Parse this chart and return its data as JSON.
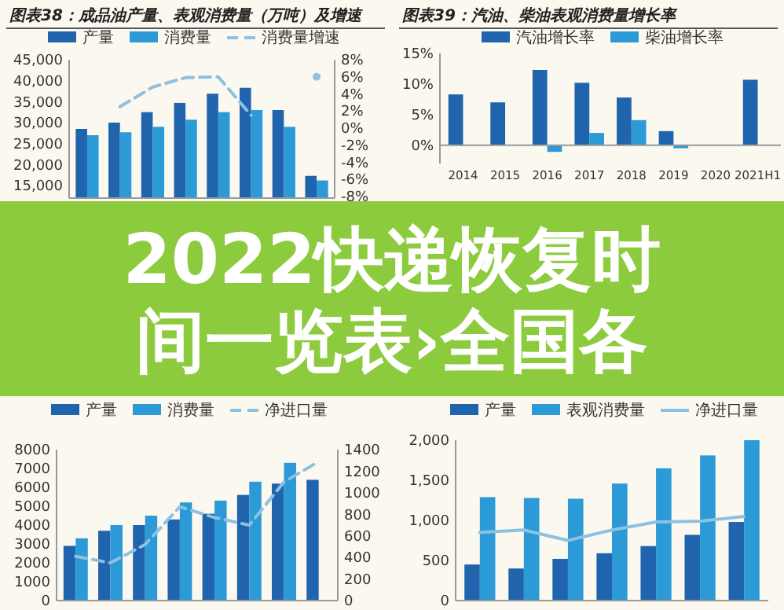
{
  "chart_data": [
    {
      "type": "bar",
      "title": "图表38：成品油产量、表观消费量（万吨）及增速",
      "categories": [
        null,
        null,
        null,
        null,
        null,
        null,
        null,
        null
      ],
      "legend": "top",
      "ylim": [
        12000,
        45000
      ],
      "yticks": [
        {
          "value": 15000,
          "label": "15,000"
        },
        {
          "value": 20000,
          "label": "20,000"
        },
        {
          "value": 25000,
          "label": "25,000"
        },
        {
          "value": 30000,
          "label": "30,000"
        },
        {
          "value": 35000,
          "label": "35,000"
        },
        {
          "value": 40000,
          "label": "40,000"
        },
        {
          "value": 45000,
          "label": "45,000"
        }
      ],
      "y2lim": [
        -8.2,
        8
      ],
      "y2ticks": [
        {
          "value": -8,
          "label": "-8%"
        },
        {
          "value": -6,
          "label": "-6%"
        },
        {
          "value": -4,
          "label": "-4%"
        },
        {
          "value": -2,
          "label": "-2%"
        },
        {
          "value": 0,
          "label": "0%"
        },
        {
          "value": 2,
          "label": "2%"
        },
        {
          "value": 4,
          "label": "4%"
        },
        {
          "value": 6,
          "label": "6%"
        },
        {
          "value": 8,
          "label": "8%"
        }
      ],
      "series": [
        {
          "name": "产量",
          "color": "#1f64ad",
          "values": [
            28500,
            30000,
            32500,
            34700,
            36900,
            38300,
            33000,
            17300
          ]
        },
        {
          "name": "消费量",
          "color": "#2b9ad6",
          "values": [
            27000,
            27700,
            29000,
            30700,
            32500,
            33000,
            29000,
            16200
          ]
        },
        {
          "name": "消费量增速",
          "type": "line",
          "axis": "y2",
          "line_style": "dashed",
          "color": "#8cc1e3",
          "values": [
            null,
            2.5,
            4.8,
            5.9,
            6.0,
            1.5,
            null,
            6.0
          ]
        }
      ]
    },
    {
      "type": "bar",
      "title": "图表39：汽油、柴油表观消费量增长率",
      "categories": [
        "2014",
        "2015",
        "2016",
        "2017",
        "2018",
        "2019",
        "2020",
        "2021H1"
      ],
      "legend": "top",
      "ylim": [
        -3,
        15
      ],
      "yticks": [
        {
          "value": 0,
          "label": "0%"
        },
        {
          "value": 5,
          "label": "5%"
        },
        {
          "value": 10,
          "label": "10%"
        },
        {
          "value": 15,
          "label": "15%"
        }
      ],
      "series": [
        {
          "name": "汽油增长率",
          "color": "#1f64ad",
          "values": [
            8.3,
            7.0,
            12.3,
            10.2,
            7.8,
            2.3,
            null,
            10.7
          ]
        },
        {
          "name": "柴油增长率",
          "color": "#2b9ad6",
          "values": [
            null,
            null,
            -1.1,
            2.0,
            4.1,
            -0.5,
            null,
            null
          ]
        }
      ]
    },
    {
      "type": "other",
      "title": "2022快递恢复时间一览表›全国各"
    },
    {
      "type": "bar",
      "categories": [
        null,
        null,
        null,
        null,
        null,
        null,
        null,
        null
      ],
      "legend": "top",
      "ylim": [
        0,
        8000
      ],
      "yticks": [
        0,
        1000,
        2000,
        3000,
        4000,
        5000,
        6000,
        7000,
        8000
      ],
      "y2lim": [
        0,
        1400
      ],
      "y2ticks": [
        0,
        200,
        400,
        600,
        800,
        1000,
        1200,
        1400
      ],
      "series": [
        {
          "name": "产量",
          "color": "#1f64ad",
          "values": [
            2900,
            3700,
            4000,
            4300,
            4600,
            5600,
            6200,
            6400
          ]
        },
        {
          "name": "消费量",
          "color": "#2b9ad6",
          "values": [
            3300,
            4000,
            4500,
            5200,
            5300,
            6300,
            7300,
            null
          ]
        },
        {
          "name": "净进口量",
          "type": "line",
          "axis": "y2",
          "line_style": "dashed",
          "color": "#8cc1e3",
          "values": [
            410,
            350,
            520,
            870,
            770,
            700,
            1100,
            1290
          ]
        }
      ]
    },
    {
      "type": "bar",
      "categories": [
        null,
        null,
        null,
        null,
        null,
        null,
        null
      ],
      "legend": "top",
      "ylim": [
        0,
        2000
      ],
      "yticks": [
        0,
        500,
        {
          "value": 1000,
          "label": "1,000"
        },
        {
          "value": 1500,
          "label": "1,500"
        },
        {
          "value": 2000,
          "label": "2,000"
        }
      ],
      "series": [
        {
          "name": "产量",
          "color": "#1f64ad",
          "values": [
            450,
            400,
            520,
            590,
            680,
            820,
            980
          ]
        },
        {
          "name": "表观消费量",
          "color": "#2b9ad6",
          "values": [
            1290,
            1280,
            1270,
            1460,
            1650,
            1810,
            2000
          ]
        },
        {
          "name": "净进口量",
          "type": "line",
          "color": "#8cc1e3",
          "values": [
            850,
            880,
            750,
            880,
            980,
            990,
            1050
          ]
        }
      ]
    }
  ]
}
